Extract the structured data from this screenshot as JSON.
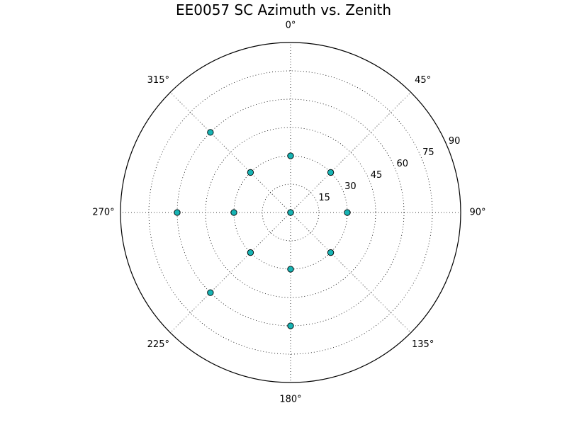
{
  "chart_data": {
    "type": "scatter",
    "subtype": "polar",
    "title": "EE0057 SC Azimuth vs. Zenith",
    "theta_axis": {
      "direction": "clockwise",
      "zero_location": "top",
      "tick_labels": [
        "0°",
        "45°",
        "90°",
        "135°",
        "180°",
        "225°",
        "270°",
        "315°"
      ],
      "tick_values": [
        0,
        45,
        90,
        135,
        180,
        225,
        270,
        315
      ]
    },
    "r_axis": {
      "range": [
        0,
        90
      ],
      "tick_values": [
        15,
        30,
        45,
        60,
        75,
        90
      ],
      "tick_labels": [
        "15",
        "30",
        "45",
        "60",
        "75",
        "90"
      ]
    },
    "grid": true,
    "series": [
      {
        "marker": "circle",
        "color": "#17b4b4",
        "points": [
          {
            "azimuth": 0,
            "zenith": 0
          },
          {
            "azimuth": 0,
            "zenith": 30
          },
          {
            "azimuth": 45,
            "zenith": 30
          },
          {
            "azimuth": 90,
            "zenith": 30
          },
          {
            "azimuth": 135,
            "zenith": 30
          },
          {
            "azimuth": 180,
            "zenith": 30
          },
          {
            "azimuth": 225,
            "zenith": 30
          },
          {
            "azimuth": 270,
            "zenith": 30
          },
          {
            "azimuth": 315,
            "zenith": 30
          },
          {
            "azimuth": 180,
            "zenith": 60
          },
          {
            "azimuth": 225,
            "zenith": 60
          },
          {
            "azimuth": 270,
            "zenith": 60
          },
          {
            "azimuth": 315,
            "zenith": 60
          }
        ]
      }
    ]
  }
}
